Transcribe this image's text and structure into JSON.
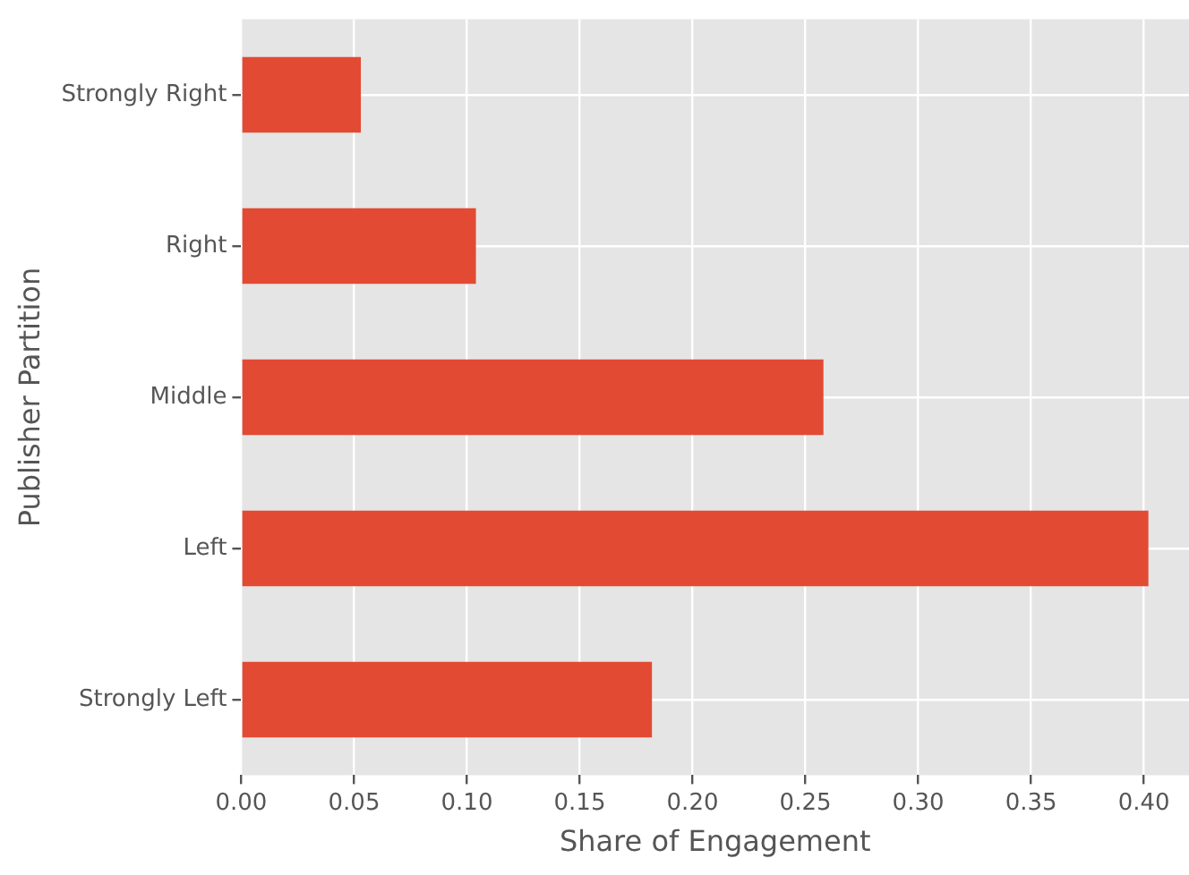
{
  "chart_data": {
    "type": "bar",
    "orientation": "horizontal",
    "xlabel": "Share of Engagement",
    "ylabel": "Publisher Partition",
    "categories": [
      "Strongly Right",
      "Right",
      "Middle",
      "Left",
      "Strongly Left"
    ],
    "values": [
      0.053,
      0.104,
      0.258,
      0.402,
      0.182
    ],
    "color": "#e24a33",
    "xlim": [
      0,
      0.42
    ],
    "xticks": [
      {
        "value": 0,
        "label": "0.00"
      },
      {
        "value": 0.05,
        "label": "0.05"
      },
      {
        "value": 0.1,
        "label": "0.10"
      },
      {
        "value": 0.15,
        "label": "0.15"
      },
      {
        "value": 0.2,
        "label": "0.20"
      },
      {
        "value": 0.25,
        "label": "0.25"
      },
      {
        "value": 0.3,
        "label": "0.30"
      },
      {
        "value": 0.35,
        "label": "0.35"
      },
      {
        "value": 0.4,
        "label": "0.40"
      }
    ],
    "grid": true,
    "legend": false
  }
}
